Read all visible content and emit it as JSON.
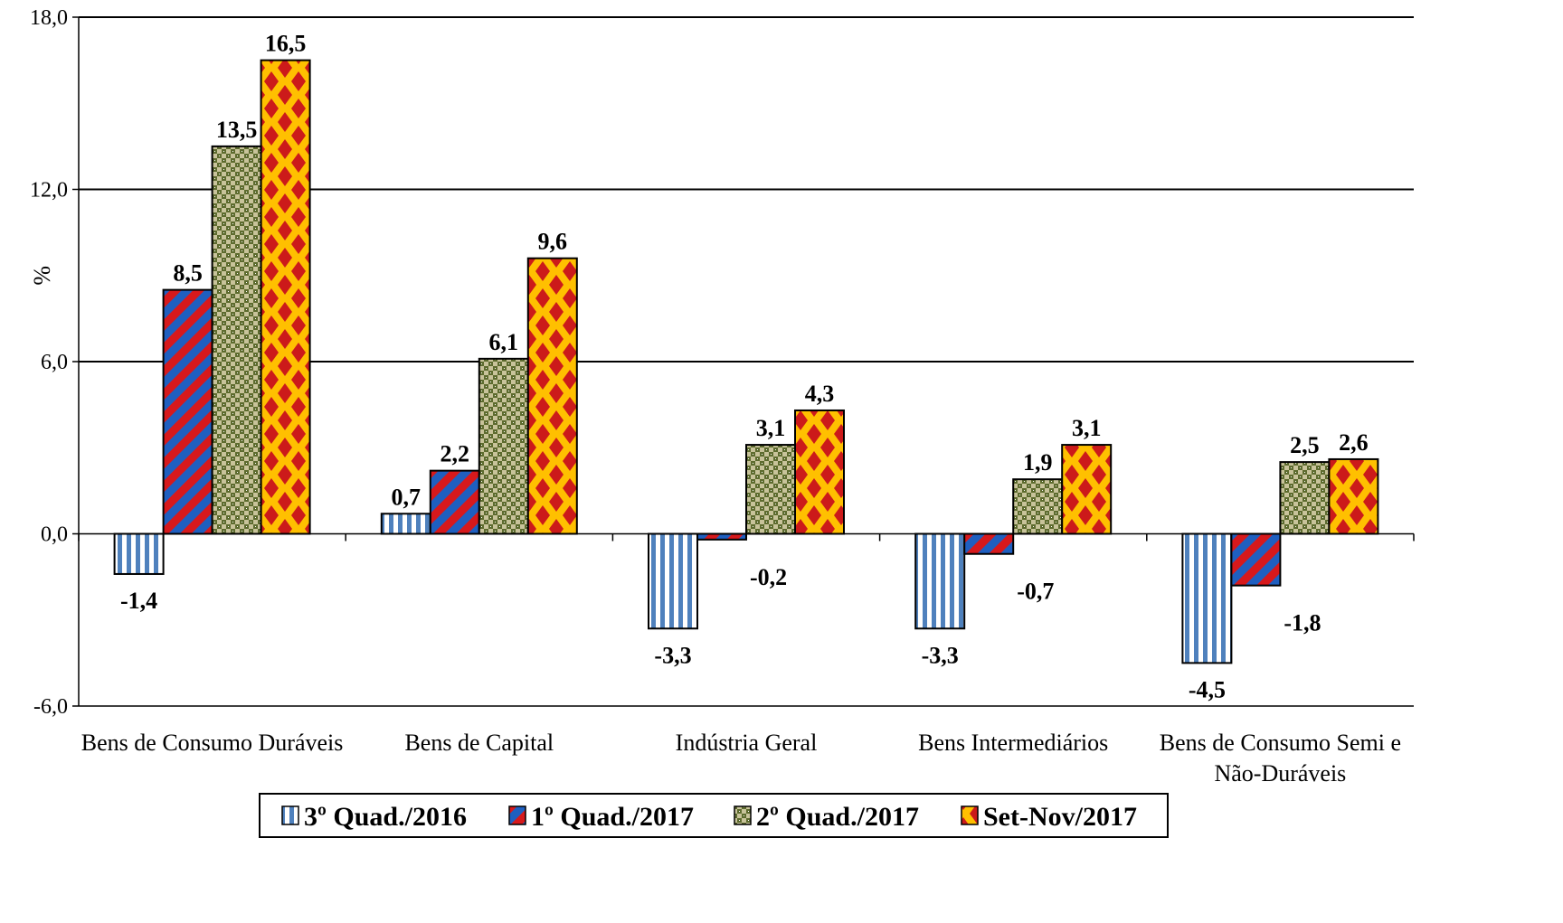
{
  "chart_data": {
    "type": "bar",
    "title": "",
    "xlabel": "",
    "ylabel": "%",
    "ylim": [
      -6,
      18
    ],
    "yticks": [
      "-6,0",
      "0,0",
      "6,0",
      "12,0",
      "18,0"
    ],
    "yticks_values": [
      -6,
      0,
      6,
      12,
      18
    ],
    "grid": true,
    "legend_position": "bottom",
    "categories": [
      "Bens de Consumo Duráveis",
      "Bens de Capital",
      "Indústria Geral",
      "Bens Intermediários",
      "Bens de Consumo Semi e Não-Duráveis"
    ],
    "series": [
      {
        "name": "3º Quad./2016",
        "values": [
          -1.4,
          0.7,
          -3.3,
          -3.3,
          -4.5
        ],
        "labels": [
          "-1,4",
          "0,7",
          "-3,3",
          "-3,3",
          "-4,5"
        ],
        "color": "#4f81bd",
        "pattern": "vertical-stripes"
      },
      {
        "name": "1º Quad./2017",
        "values": [
          8.5,
          2.2,
          -0.2,
          -0.7,
          -1.8
        ],
        "labels": [
          "8,5",
          "2,2",
          "-0,2",
          "-0,7",
          "-1,8"
        ],
        "color": "#d7191c",
        "pattern": "diagonal-stripes"
      },
      {
        "name": "2º Quad./2017",
        "values": [
          13.5,
          6.1,
          3.1,
          1.9,
          2.5
        ],
        "labels": [
          "13,5",
          "6,1",
          "3,1",
          "1,9",
          "2,5"
        ],
        "color": "#6b7a3a",
        "pattern": "checker"
      },
      {
        "name": "Set-Nov/2017",
        "values": [
          16.5,
          9.6,
          4.3,
          3.1,
          2.6
        ],
        "labels": [
          "16,5",
          "9,6",
          "4,3",
          "3,1",
          "2,6"
        ],
        "color": "#ffc000",
        "pattern": "diamonds"
      }
    ]
  }
}
